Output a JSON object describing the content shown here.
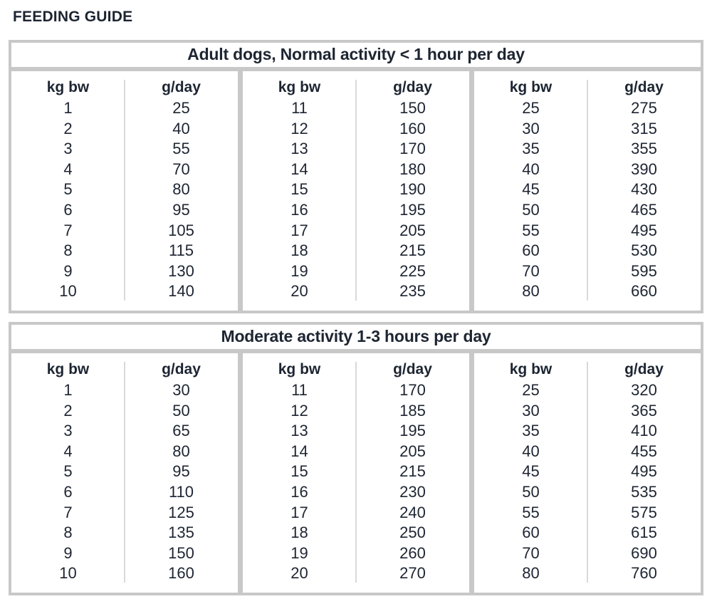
{
  "page_title": "FEEDING GUIDE",
  "colors": {
    "text": "#1d2532",
    "outer_border": "#c8c8c8",
    "thin_divider": "#d9d9d9",
    "background": "#ffffff"
  },
  "col_headers": {
    "weight": "kg bw",
    "amount": "g/day"
  },
  "tables": [
    {
      "title": "Adult dogs, Normal activity < 1 hour per day",
      "groups": [
        {
          "rows": [
            [
              1,
              25
            ],
            [
              2,
              40
            ],
            [
              3,
              55
            ],
            [
              4,
              70
            ],
            [
              5,
              80
            ],
            [
              6,
              95
            ],
            [
              7,
              105
            ],
            [
              8,
              115
            ],
            [
              9,
              130
            ],
            [
              10,
              140
            ]
          ]
        },
        {
          "rows": [
            [
              11,
              150
            ],
            [
              12,
              160
            ],
            [
              13,
              170
            ],
            [
              14,
              180
            ],
            [
              15,
              190
            ],
            [
              16,
              195
            ],
            [
              17,
              205
            ],
            [
              18,
              215
            ],
            [
              19,
              225
            ],
            [
              20,
              235
            ]
          ]
        },
        {
          "rows": [
            [
              25,
              275
            ],
            [
              30,
              315
            ],
            [
              35,
              355
            ],
            [
              40,
              390
            ],
            [
              45,
              430
            ],
            [
              50,
              465
            ],
            [
              55,
              495
            ],
            [
              60,
              530
            ],
            [
              70,
              595
            ],
            [
              80,
              660
            ]
          ]
        }
      ]
    },
    {
      "title": "Moderate activity 1-3 hours per day",
      "groups": [
        {
          "rows": [
            [
              1,
              30
            ],
            [
              2,
              50
            ],
            [
              3,
              65
            ],
            [
              4,
              80
            ],
            [
              5,
              95
            ],
            [
              6,
              110
            ],
            [
              7,
              125
            ],
            [
              8,
              135
            ],
            [
              9,
              150
            ],
            [
              10,
              160
            ]
          ]
        },
        {
          "rows": [
            [
              11,
              170
            ],
            [
              12,
              185
            ],
            [
              13,
              195
            ],
            [
              14,
              205
            ],
            [
              15,
              215
            ],
            [
              16,
              230
            ],
            [
              17,
              240
            ],
            [
              18,
              250
            ],
            [
              19,
              260
            ],
            [
              20,
              270
            ]
          ]
        },
        {
          "rows": [
            [
              25,
              320
            ],
            [
              30,
              365
            ],
            [
              35,
              410
            ],
            [
              40,
              455
            ],
            [
              45,
              495
            ],
            [
              50,
              535
            ],
            [
              55,
              575
            ],
            [
              60,
              615
            ],
            [
              70,
              690
            ],
            [
              80,
              760
            ]
          ]
        }
      ]
    }
  ]
}
